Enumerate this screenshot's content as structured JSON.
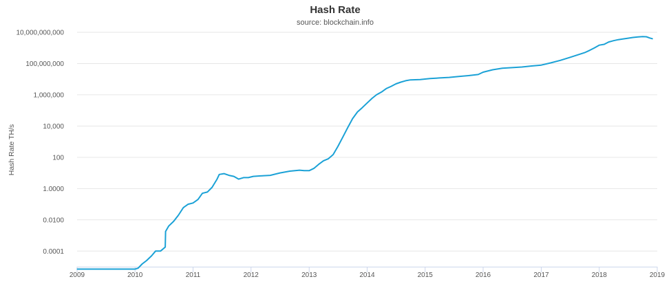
{
  "chart_data": {
    "type": "line",
    "title": "Hash Rate",
    "subtitle": "source: blockchain.info",
    "ylabel": "Hash Rate TH/s",
    "xlabel": "",
    "y_scale": "log",
    "ylim": [
      1e-05,
      10000000000
    ],
    "xlim": [
      "2009-01-01",
      "2019-01-01"
    ],
    "grid": true,
    "legend": "none",
    "color": "#1aa1d6",
    "y_ticks": [
      {
        "value": 0.0001,
        "label": "0.0001"
      },
      {
        "value": 0.01,
        "label": "0.0100"
      },
      {
        "value": 1,
        "label": "1.0000"
      },
      {
        "value": 100,
        "label": "100"
      },
      {
        "value": 10000,
        "label": "10,000"
      },
      {
        "value": 1000000,
        "label": "1,000,000"
      },
      {
        "value": 100000000,
        "label": "100,000,000"
      },
      {
        "value": 10000000000,
        "label": "10,000,000,000"
      }
    ],
    "x_ticks": [
      "2009",
      "2010",
      "2011",
      "2012",
      "2013",
      "2014",
      "2015",
      "2016",
      "2017",
      "2018",
      "2019"
    ],
    "series": [
      {
        "x": [
          "2009-01-03",
          "2009-06-01",
          "2010-01-01",
          "2010-01-20",
          "2010-02-15",
          "2010-03-15",
          "2010-04-15",
          "2010-05-10",
          "2010-06-10",
          "2010-07-10",
          "2010-07-12",
          "2010-08-01",
          "2010-09-01",
          "2010-10-01",
          "2010-11-01",
          "2010-12-01",
          "2011-01-01",
          "2011-02-01",
          "2011-03-01",
          "2011-04-01",
          "2011-05-01",
          "2011-06-01",
          "2011-06-15",
          "2011-07-15",
          "2011-08-15",
          "2011-09-15",
          "2011-10-15",
          "2011-11-15",
          "2011-12-15",
          "2012-01-15",
          "2012-03-01",
          "2012-05-01",
          "2012-07-01",
          "2012-09-01",
          "2012-11-01",
          "2012-12-01",
          "2013-01-01",
          "2013-02-01",
          "2013-03-01",
          "2013-04-01",
          "2013-05-01",
          "2013-06-01",
          "2013-07-01",
          "2013-08-01",
          "2013-09-01",
          "2013-10-01",
          "2013-11-01",
          "2013-12-01",
          "2014-01-01",
          "2014-02-01",
          "2014-03-01",
          "2014-04-01",
          "2014-05-01",
          "2014-06-01",
          "2014-07-01",
          "2014-08-01",
          "2014-09-01",
          "2014-10-01",
          "2014-12-01",
          "2015-02-01",
          "2015-04-01",
          "2015-06-01",
          "2015-08-01",
          "2015-10-01",
          "2015-12-01",
          "2016-01-01",
          "2016-03-01",
          "2016-05-01",
          "2016-07-01",
          "2016-09-01",
          "2016-11-01",
          "2017-01-01",
          "2017-03-01",
          "2017-05-01",
          "2017-07-01",
          "2017-09-01",
          "2017-10-01",
          "2017-11-01",
          "2017-12-01",
          "2018-01-01",
          "2018-02-01",
          "2018-03-01",
          "2018-04-01",
          "2018-05-01",
          "2018-06-01",
          "2018-07-01",
          "2018-08-01",
          "2018-09-01",
          "2018-10-01",
          "2018-10-25",
          "2018-11-15",
          "2018-12-01"
        ],
        "y": [
          7e-06,
          7e-06,
          7e-06,
          8e-06,
          1.5e-05,
          2.5e-05,
          5e-05,
          0.0001,
          0.0001,
          0.00018,
          0.0018,
          0.004,
          0.008,
          0.02,
          0.06,
          0.1,
          0.12,
          0.2,
          0.5,
          0.6,
          1.2,
          4,
          8,
          9,
          7,
          6,
          4,
          5,
          5,
          6,
          6.5,
          7,
          10,
          13,
          15,
          14,
          14,
          20,
          35,
          60,
          80,
          150,
          500,
          2000,
          8000,
          30000,
          80000,
          150000,
          300000,
          600000,
          1000000,
          1500000,
          2500000,
          3500000,
          5000000,
          6500000,
          8000000,
          9000000,
          9500000,
          11000000,
          12000000,
          13000000,
          15000000,
          17000000,
          20000000,
          28000000,
          40000000,
          50000000,
          55000000,
          60000000,
          70000000,
          80000000,
          110000000,
          160000000,
          250000000,
          400000000,
          500000000,
          700000000,
          1000000000,
          1500000000,
          1700000000,
          2400000000,
          2900000000,
          3400000000,
          3800000000,
          4200000000,
          4700000000,
          5000000000,
          5300000000,
          5200000000,
          4300000000,
          3900000000
        ]
      }
    ]
  }
}
